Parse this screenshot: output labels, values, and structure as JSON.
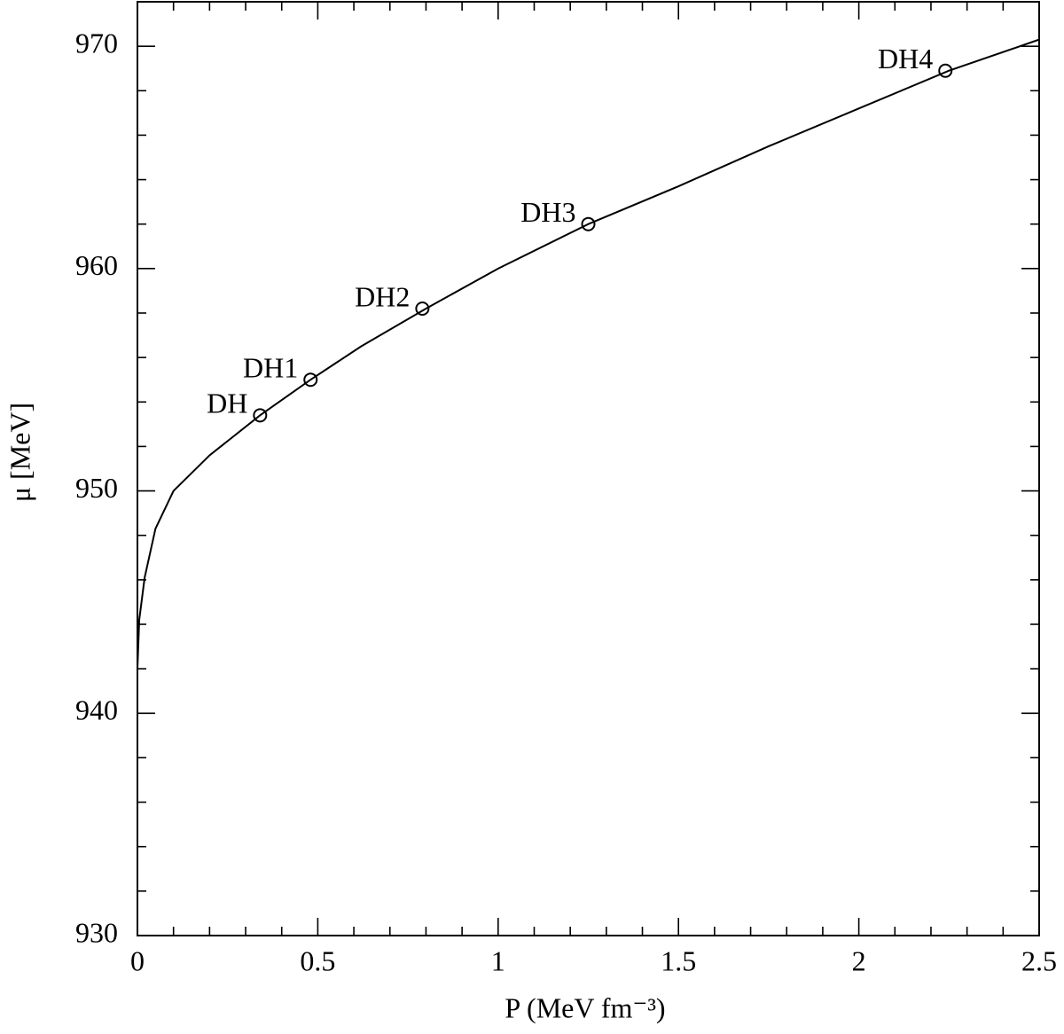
{
  "chart_data": {
    "type": "line",
    "xlabel": "P  (MeV fm⁻³)",
    "ylabel": "μ [MeV]",
    "xlim": [
      0,
      2.5
    ],
    "xticks": [
      0,
      0.5,
      1,
      1.5,
      2,
      2.5
    ],
    "ylim": [
      930,
      972
    ],
    "yticks": [
      930,
      940,
      950,
      960,
      970
    ],
    "color": "#000000",
    "x": [
      0,
      0.005,
      0.02,
      0.05,
      0.1,
      0.2,
      0.34,
      0.48,
      0.62,
      0.8,
      1.0,
      1.25,
      1.5,
      1.75,
      2.0,
      2.25,
      2.5
    ],
    "values": [
      942,
      944.2,
      946.1,
      948.3,
      950.0,
      951.6,
      953.4,
      955.0,
      956.5,
      958.2,
      960.0,
      962.0,
      963.7,
      965.5,
      967.2,
      968.9,
      970.3
    ],
    "markers": {
      "labels": [
        "DH",
        "DH1",
        "DH2",
        "DH3",
        "DH4"
      ],
      "x": [
        0.34,
        0.48,
        0.79,
        1.25,
        2.24
      ],
      "values": [
        953.4,
        955.0,
        958.2,
        962.0,
        968.9
      ]
    }
  }
}
